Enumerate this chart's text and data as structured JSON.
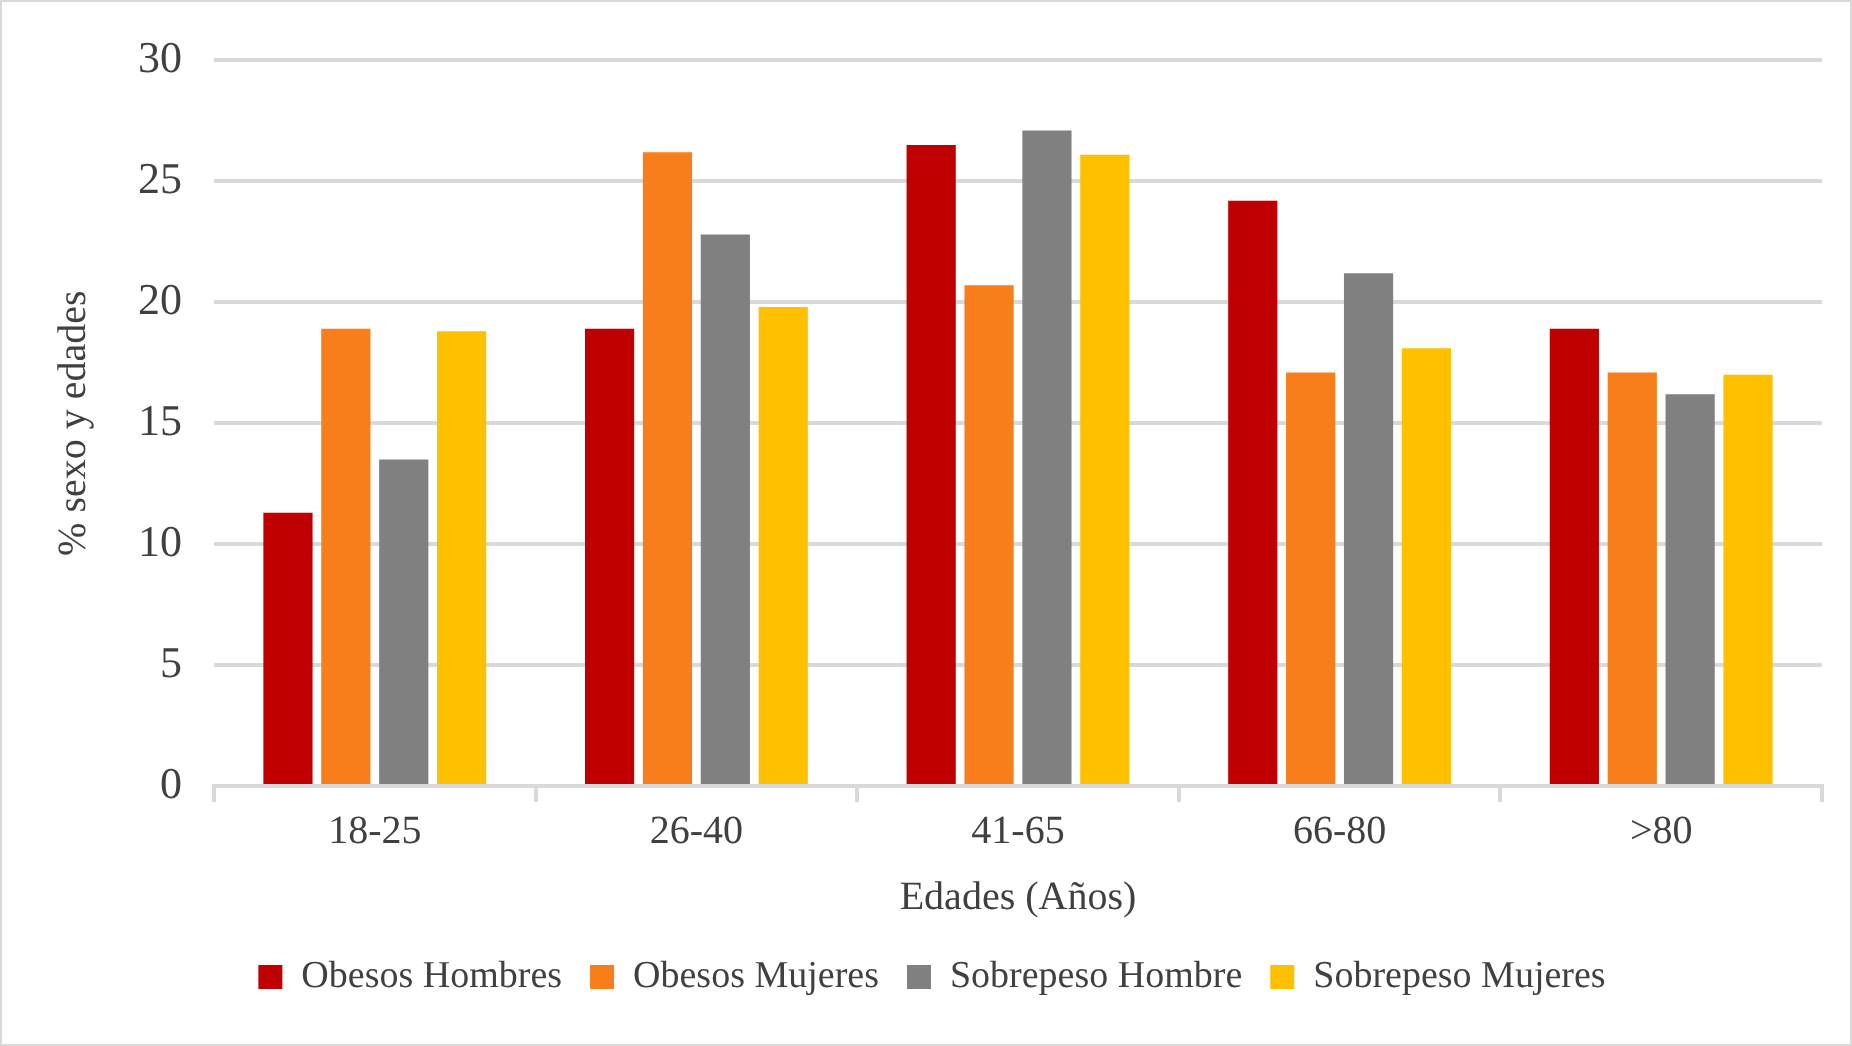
{
  "chart_data": {
    "type": "bar",
    "xlabel": "Edades (Años)",
    "ylabel": "% sexo y edades",
    "categories": [
      "18-25",
      "26-40",
      "41-65",
      "66-80",
      ">80"
    ],
    "series": [
      {
        "name": "Obesos Hombres",
        "color": "#c00000",
        "values": [
          11.3,
          18.9,
          26.5,
          24.2,
          18.9
        ]
      },
      {
        "name": "Obesos Mujeres",
        "color": "#f77e1b",
        "values": [
          18.9,
          26.2,
          20.7,
          17.1,
          17.1
        ]
      },
      {
        "name": "Sobrepeso Hombre",
        "color": "#808080",
        "values": [
          13.5,
          22.8,
          27.1,
          21.2,
          16.2
        ]
      },
      {
        "name": "Sobrepeso Mujeres",
        "color": "#ffc000",
        "values": [
          18.8,
          19.8,
          26.1,
          18.1,
          17.0
        ]
      }
    ],
    "ylim": [
      0,
      30
    ],
    "yticks": [
      0,
      5,
      10,
      15,
      20,
      25,
      30
    ],
    "grid": "y",
    "legend": "bottom"
  }
}
